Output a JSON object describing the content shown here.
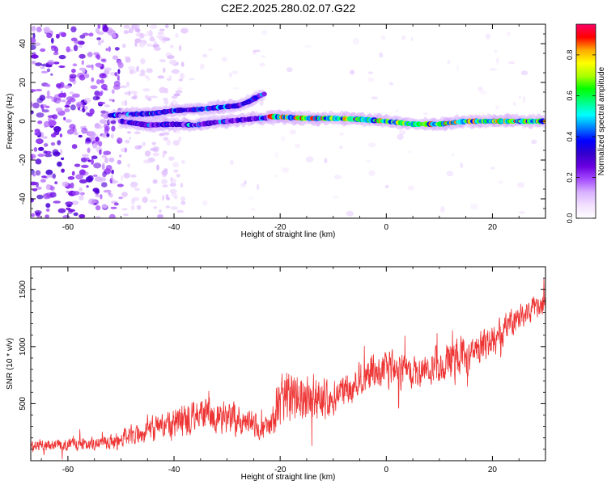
{
  "title": "C2E2.2025.280.02.07.G22",
  "colors": {
    "snr_line": "#ee3333",
    "axis": "#000000",
    "colormap": [
      "#ffffff",
      "#f2e0ff",
      "#d9b3ff",
      "#a64dff",
      "#6a00e0",
      "#3300cc",
      "#0000ff",
      "#0080ff",
      "#00ffff",
      "#00ff80",
      "#00ff00",
      "#aaff00",
      "#ffff00",
      "#ffaa00",
      "#ff0000",
      "#ff0066"
    ]
  },
  "chart_data": [
    {
      "type": "heatmap",
      "id": "spectrogram",
      "xlabel": "Height of straight line (km)",
      "ylabel": "Frequency (Hz)",
      "xlim": [
        -67,
        30
      ],
      "ylim": [
        -50,
        50
      ],
      "xticks": [
        -60,
        -40,
        -20,
        0,
        20
      ],
      "xtick_labels": [
        "-60",
        "-40",
        "-20",
        "0",
        "20"
      ],
      "yticks": [
        -40,
        -20,
        0,
        20,
        40
      ],
      "ytick_labels": [
        "-40",
        "-20",
        "0",
        "20",
        "40"
      ],
      "colorbar": {
        "label": "Normalized spectral amplitude",
        "range": [
          0,
          0.95
        ],
        "ticks": [
          0,
          0.2,
          0.4,
          0.6,
          0.8
        ],
        "tick_labels": [
          "0.0",
          "0.2",
          "0.4",
          "0.6",
          "0.8"
        ]
      },
      "tracks": [
        {
          "name": "upper branch",
          "points": [
            [
              -52,
              3
            ],
            [
              -48,
              3.5
            ],
            [
              -44,
              4
            ],
            [
              -40,
              5.5
            ],
            [
              -36,
              6
            ],
            [
              -32,
              7
            ],
            [
              -28,
              8
            ],
            [
              -26,
              10
            ],
            [
              -24,
              13
            ],
            [
              -23,
              14
            ]
          ],
          "amplitude": 0.4
        },
        {
          "name": "lower branch",
          "points": [
            [
              -50,
              0
            ],
            [
              -45,
              -2
            ],
            [
              -40,
              -1.5
            ],
            [
              -36,
              -2
            ],
            [
              -32,
              -0.5
            ],
            [
              -28,
              0.5
            ],
            [
              -24,
              1.5
            ],
            [
              -20,
              2
            ]
          ],
          "amplitude": 0.35
        },
        {
          "name": "main trace",
          "points": [
            [
              -22,
              2.5
            ],
            [
              -15,
              1.5
            ],
            [
              -10,
              1.5
            ],
            [
              -5,
              1
            ],
            [
              0,
              0
            ],
            [
              5,
              -1.5
            ],
            [
              10,
              -1.5
            ],
            [
              15,
              0
            ],
            [
              20,
              0
            ],
            [
              25,
              0
            ],
            [
              30,
              0
            ]
          ],
          "amplitude": 0.7
        }
      ]
    },
    {
      "type": "line",
      "id": "snr",
      "xlabel": "Height of straight line (km)",
      "ylabel": "SNR (10 * v/v)",
      "xlim": [
        -67,
        30
      ],
      "ylim": [
        0,
        1700
      ],
      "xticks": [
        -60,
        -40,
        -20,
        0,
        20
      ],
      "xtick_labels": [
        "-60",
        "-40",
        "-20",
        "0",
        "20"
      ],
      "yticks": [
        500,
        1000,
        1500
      ],
      "ytick_labels": [
        "500",
        "1000",
        "1500"
      ],
      "envelope": {
        "x": [
          -67,
          -60,
          -55,
          -52,
          -50,
          -45,
          -40,
          -35,
          -30,
          -25,
          -22,
          -20,
          -18,
          -15,
          -12,
          -10,
          -5,
          0,
          5,
          10,
          13,
          15,
          20,
          25,
          30
        ],
        "mean": [
          130,
          140,
          150,
          160,
          200,
          260,
          330,
          400,
          380,
          320,
          280,
          500,
          550,
          600,
          500,
          560,
          700,
          820,
          780,
          850,
          920,
          900,
          1050,
          1250,
          1400
        ],
        "amp": [
          60,
          70,
          75,
          80,
          110,
          140,
          180,
          200,
          180,
          150,
          120,
          300,
          300,
          300,
          260,
          200,
          200,
          220,
          200,
          200,
          250,
          200,
          180,
          150,
          130
        ]
      }
    }
  ]
}
